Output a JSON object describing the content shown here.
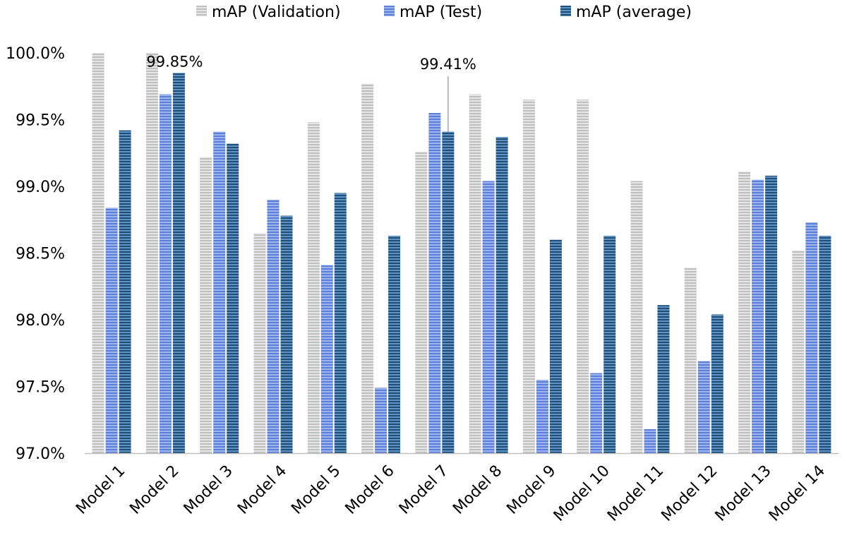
{
  "chart_data": {
    "type": "bar",
    "categories": [
      "Model 1",
      "Model 2",
      "Model 3",
      "Model 4",
      "Model 5",
      "Model 6",
      "Model 7",
      "Model 8",
      "Model 9",
      "Model 10",
      "Model 11",
      "Model 12",
      "Model 13",
      "Model 14"
    ],
    "series": [
      {
        "name": "mAP (Validation)",
        "color": "#a6a6a6",
        "values": [
          100.0,
          100.0,
          99.22,
          98.65,
          99.48,
          99.77,
          99.26,
          99.69,
          99.65,
          99.65,
          99.04,
          98.39,
          99.11,
          98.52
        ]
      },
      {
        "name": "mAP (Test)",
        "color": "#6d8fe0",
        "values": [
          98.84,
          99.69,
          99.41,
          98.9,
          98.41,
          97.49,
          99.55,
          99.04,
          97.55,
          97.6,
          97.18,
          97.69,
          99.05,
          98.73
        ]
      },
      {
        "name": "mAP (average)",
        "color": "#2e6b9e",
        "values": [
          99.42,
          99.85,
          99.32,
          98.78,
          98.95,
          98.63,
          99.41,
          99.37,
          98.6,
          98.63,
          98.11,
          98.04,
          99.08,
          98.63
        ]
      }
    ],
    "annotations": [
      {
        "category": "Model 2",
        "series": "mAP (average)",
        "text": "99.85%"
      },
      {
        "category": "Model 7",
        "series": "mAP (average)",
        "text": "99.41%"
      }
    ],
    "y_ticks": [
      "97.0%",
      "97.5%",
      "98.0%",
      "98.5%",
      "99.0%",
      "99.5%",
      "100.0%"
    ],
    "ylim": [
      97.0,
      100.0
    ],
    "legend_position": "top-center",
    "grid": false
  }
}
